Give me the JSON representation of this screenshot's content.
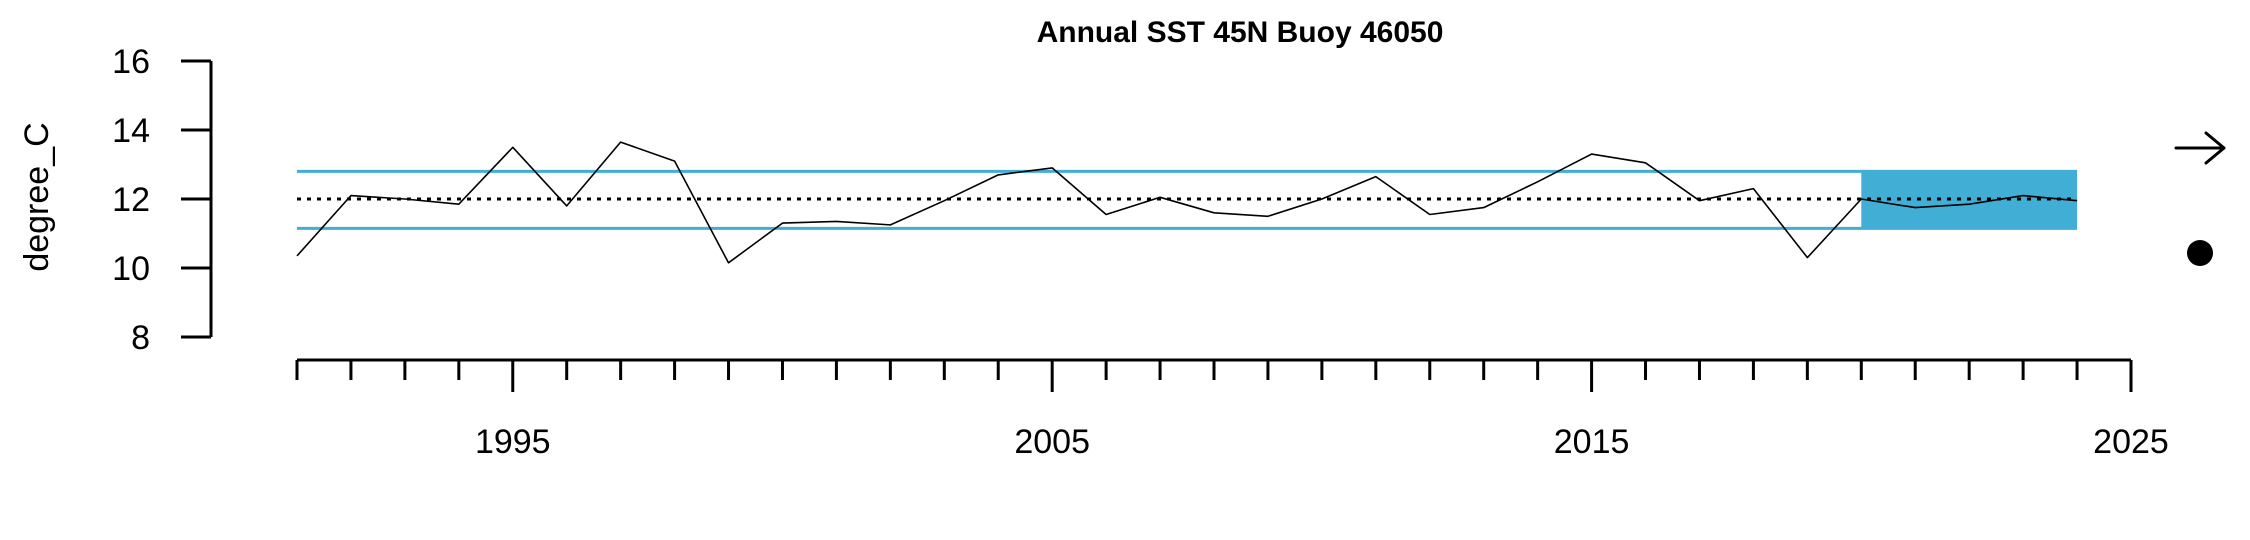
{
  "chart_data": {
    "type": "line",
    "title": "Annual SST 45N Buoy 46050",
    "xlabel": "",
    "ylabel": "degree_C",
    "xlim": [
      1991,
      2025
    ],
    "ylim": [
      8,
      16
    ],
    "y_ticks": [
      8,
      10,
      12,
      14,
      16
    ],
    "x_major_ticks": [
      1995,
      2005,
      2015,
      2025
    ],
    "x_minor_ticks": [
      1991,
      1992,
      1993,
      1994,
      1995,
      1996,
      1997,
      1998,
      1999,
      2000,
      2001,
      2002,
      2003,
      2004,
      2005,
      2006,
      2007,
      2008,
      2009,
      2010,
      2011,
      2012,
      2013,
      2014,
      2015,
      2016,
      2017,
      2018,
      2019,
      2020,
      2021,
      2022,
      2023,
      2024,
      2025
    ],
    "series": [
      {
        "x": [
          1991,
          1992,
          1993,
          1994,
          1995,
          1996,
          1997,
          1998,
          1999,
          2000,
          2001,
          2002,
          2003,
          2004,
          2005,
          2006,
          2007,
          2008,
          2009,
          2010,
          2011,
          2012,
          2013,
          2014,
          2015,
          2016,
          2017,
          2018,
          2019,
          2020,
          2021,
          2022,
          2023,
          2024
        ],
        "y": [
          10.35,
          12.1,
          12.0,
          11.85,
          13.5,
          11.8,
          13.65,
          13.1,
          10.15,
          11.3,
          11.35,
          11.25,
          11.95,
          12.7,
          12.9,
          11.55,
          12.05,
          11.6,
          11.5,
          12.0,
          12.65,
          11.55,
          11.75,
          12.5,
          13.3,
          13.05,
          11.95,
          12.3,
          10.3,
          12.0,
          11.75,
          11.85,
          12.1,
          11.95
        ]
      }
    ],
    "reference_lines": {
      "mean": 12.0,
      "upper": 12.8,
      "lower": 11.15
    },
    "highlight_range": {
      "x": [
        2020,
        2024
      ],
      "y": [
        11.15,
        12.8
      ]
    },
    "trend_indicator": "right-arrow",
    "mean_indicator": "filled-circle",
    "colors": {
      "line": "#000000",
      "bounds": "#41aed6",
      "highlight": "#41aed6",
      "mean": "#000000"
    },
    "grid": false
  }
}
